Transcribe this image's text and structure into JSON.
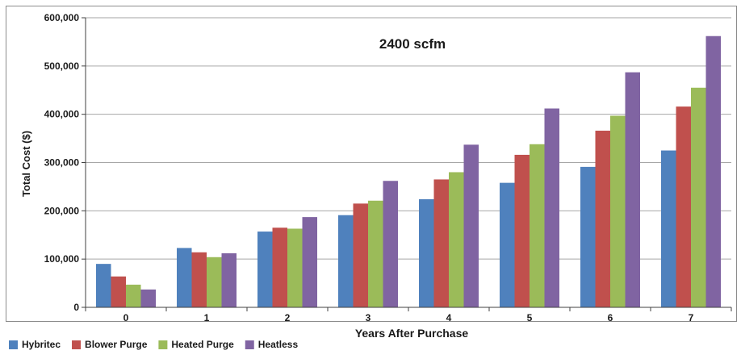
{
  "chart_data": {
    "type": "bar",
    "title": "2400 scfm",
    "xlabel": "Years After Purchase",
    "ylabel": "Total Cost ($)",
    "ylim": [
      0,
      600000
    ],
    "yticks": [
      0,
      100000,
      200000,
      300000,
      400000,
      500000,
      600000
    ],
    "ytick_labels": [
      "0",
      "100,000",
      "200,000",
      "300,000",
      "400,000",
      "500,000",
      "600,000"
    ],
    "categories": [
      "0",
      "1",
      "2",
      "3",
      "4",
      "5",
      "6",
      "7"
    ],
    "grid": true,
    "legend_position": "bottom-left",
    "series": [
      {
        "name": "Hybritec",
        "color": "#4F81BD",
        "values": [
          90000,
          123000,
          157000,
          191000,
          224000,
          258000,
          291000,
          325000
        ]
      },
      {
        "name": "Blower Purge",
        "color": "#C0504D",
        "values": [
          64000,
          114000,
          165000,
          215000,
          265000,
          316000,
          366000,
          416000
        ]
      },
      {
        "name": "Heated Purge",
        "color": "#9BBB59",
        "values": [
          47000,
          104000,
          163000,
          221000,
          280000,
          338000,
          397000,
          455000
        ]
      },
      {
        "name": "Heatless",
        "color": "#8064A2",
        "values": [
          37000,
          112000,
          187000,
          262000,
          337000,
          412000,
          487000,
          562000
        ]
      }
    ]
  }
}
